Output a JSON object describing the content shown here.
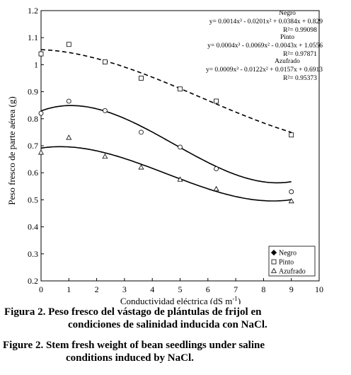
{
  "chart_data": {
    "type": "scatter",
    "xlabel": "Conductividad eléctrica (dS m",
    "xlabel_sup": "-1",
    "xlabel_close": ")",
    "ylabel": "Peso fresco de parte aérea (g)",
    "xlim": [
      0,
      10
    ],
    "ylim": [
      0.2,
      1.2
    ],
    "xticks": [
      "0",
      "1",
      "2",
      "3",
      "4",
      "5",
      "6",
      "7",
      "8",
      "9",
      "10"
    ],
    "yticks": [
      "0.2",
      "0.3",
      "0.4",
      "0.5",
      "0.6",
      "0.7",
      "0.8",
      "0.9",
      "1",
      "1.1",
      "1.2"
    ],
    "grid": false,
    "legend_position": "bottom-right",
    "series": [
      {
        "name": "Negro",
        "marker": "circle",
        "x": [
          0,
          1,
          2.3,
          3.6,
          5,
          6.3,
          9
        ],
        "y": [
          0.82,
          0.865,
          0.83,
          0.75,
          0.695,
          0.615,
          0.53
        ],
        "fit": {
          "type": "cubic",
          "coef": [
            0.0014,
            -0.0201,
            0.0384,
            0.829
          ],
          "line": "solid"
        },
        "equation": "y= 0.0014x³ - 0.0201x² + 0.0384x + 0.829",
        "r2": "R²= 0.99098"
      },
      {
        "name": "Pinto",
        "marker": "square",
        "x": [
          0,
          1,
          2.3,
          3.6,
          5,
          6.3,
          9
        ],
        "y": [
          1.04,
          1.075,
          1.01,
          0.95,
          0.91,
          0.865,
          0.74
        ],
        "fit": {
          "type": "cubic",
          "coef": [
            0.0004,
            -0.0069,
            -0.0043,
            1.0556
          ],
          "line": "dashed"
        },
        "equation": "y= 0.0004x³ - 0.0069x² - 0.0043x + 1.0556",
        "r2": "R²= 0.97871"
      },
      {
        "name": "Azufrado",
        "marker": "triangle",
        "x": [
          0,
          1,
          2.3,
          3.6,
          5,
          6.3,
          9
        ],
        "y": [
          0.675,
          0.73,
          0.66,
          0.62,
          0.575,
          0.54,
          0.495
        ],
        "fit": {
          "type": "cubic",
          "coef": [
            0.0009,
            -0.0122,
            0.0157,
            0.6913
          ],
          "line": "solid"
        },
        "equation": "y= 0.0009x³ - 0.0122x² + 0.0157x + 0.6913",
        "r2": "R²= 0.95373"
      }
    ],
    "legend_entries": [
      "Negro",
      "Pinto",
      "Azufrado"
    ]
  },
  "captions": {
    "es_line1": "Figura 2. Peso fresco del vástago de plántulas de frijol en",
    "es_line2": "condiciones de salinidad inducida con NaCl.",
    "en_line1": "Figure 2. Stem fresh weight of bean seedlings under saline",
    "en_line2": "conditions induced by NaCl."
  }
}
